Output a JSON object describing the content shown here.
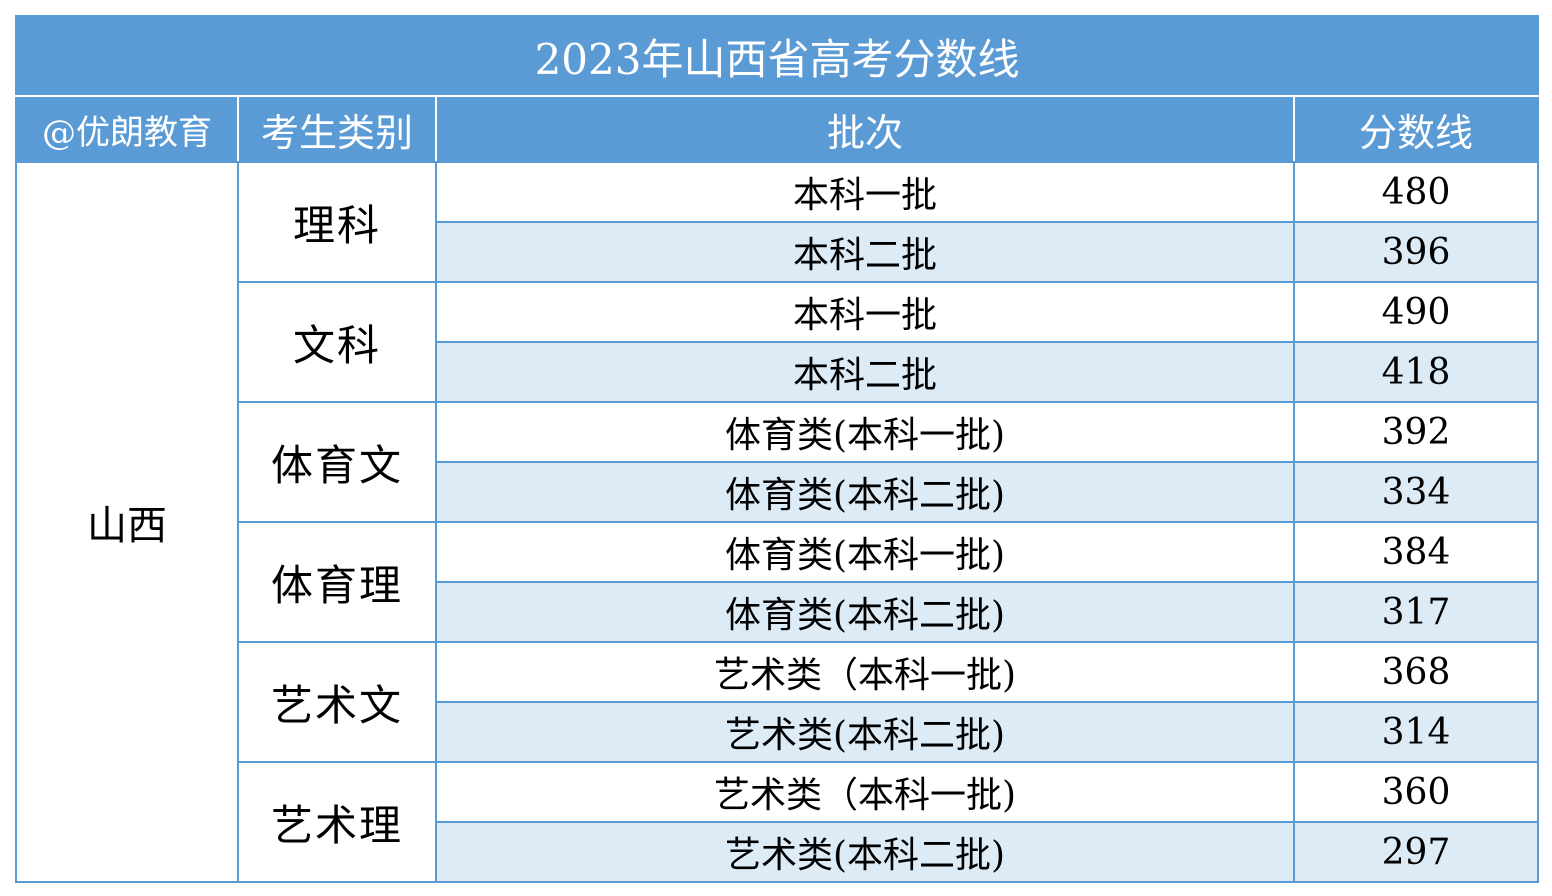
{
  "title": "2023年山西省高考分数线",
  "headers": {
    "watermark": "@优朗教育",
    "category": "考生类别",
    "batch": "批次",
    "score": "分数线"
  },
  "province": "山西",
  "categories": [
    {
      "name": "理科",
      "rows": [
        {
          "batch": "本科一批",
          "score": "480"
        },
        {
          "batch": "本科二批",
          "score": "396"
        }
      ]
    },
    {
      "name": "文科",
      "rows": [
        {
          "batch": "本科一批",
          "score": "490"
        },
        {
          "batch": "本科二批",
          "score": "418"
        }
      ]
    },
    {
      "name": "体育文",
      "rows": [
        {
          "batch": "体育类(本科一批)",
          "score": "392"
        },
        {
          "batch": "体育类(本科二批)",
          "score": "334"
        }
      ]
    },
    {
      "name": "体育理",
      "rows": [
        {
          "batch": "体育类(本科一批)",
          "score": "384"
        },
        {
          "batch": "体育类(本科二批)",
          "score": "317"
        }
      ]
    },
    {
      "name": "艺术文",
      "rows": [
        {
          "batch": "艺术类（本科一批)",
          "score": "368"
        },
        {
          "batch": "艺术类(本科二批)",
          "score": "314"
        }
      ]
    },
    {
      "name": "艺术理",
      "rows": [
        {
          "batch": "艺术类（本科一批)",
          "score": "360"
        },
        {
          "batch": "艺术类(本科二批)",
          "score": "297"
        }
      ]
    }
  ],
  "colors": {
    "header_background": "#5b9bd5",
    "stripe_background": "#ddebf7",
    "border": "#5b9bd5"
  }
}
